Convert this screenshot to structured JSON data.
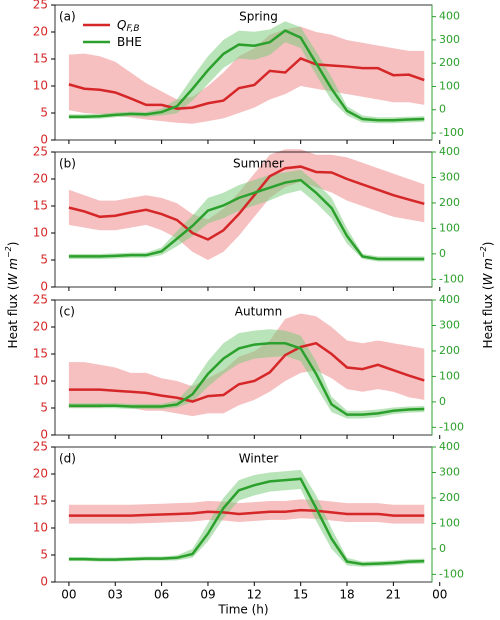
{
  "figure": {
    "ylabel_parts": [
      "Heat flux (",
      "W m",
      "−2",
      ")"
    ],
    "y2label_parts": [
      "Heat flux (",
      "W m",
      "−2",
      ")"
    ],
    "xlabel": "Time (h)",
    "x": [
      0,
      1,
      2,
      3,
      4,
      5,
      6,
      7,
      8,
      9,
      10,
      11,
      12,
      13,
      14,
      15,
      16,
      17,
      18,
      19,
      20,
      21,
      22,
      23
    ],
    "xlim": [
      -0.9,
      23.5
    ],
    "xticks": [
      {
        "value": 0,
        "label": "00"
      },
      {
        "value": 3,
        "label": "03"
      },
      {
        "value": 6,
        "label": "06"
      },
      {
        "value": 9,
        "label": "09"
      },
      12,
      15,
      18,
      21,
      {
        "value": 24,
        "label": "00"
      }
    ]
  },
  "chart_data": [
    {
      "type": "line",
      "label": "(a)",
      "title": "Spring",
      "legend": "upper left",
      "ylim": [
        0,
        25
      ],
      "yticks": [
        0,
        5,
        10,
        15,
        20,
        25
      ],
      "y2lim": [
        -130,
        450
      ],
      "y2ticks": [
        -100,
        0,
        100,
        200,
        300,
        400
      ],
      "series": [
        {
          "name": "Q",
          "name_sub": "F,B",
          "color": "#d62728",
          "band_color": "#ef8a8c",
          "values": [
            10.3,
            9.5,
            9.3,
            8.8,
            7.7,
            6.5,
            6.5,
            5.8,
            6.0,
            6.8,
            7.3,
            9.6,
            10.2,
            12.8,
            12.5,
            15.1,
            14.0,
            13.8,
            13.6,
            13.3,
            13.3,
            12.0,
            12.1,
            11.1
          ],
          "lower": [
            5.5,
            5.0,
            4.8,
            4.5,
            4.2,
            3.8,
            3.5,
            3.2,
            3.0,
            3.5,
            4.0,
            5.0,
            6.0,
            7.5,
            8.5,
            10.0,
            9.5,
            9.0,
            8.5,
            8.0,
            7.5,
            7.0,
            7.0,
            6.5
          ],
          "upper": [
            15.8,
            16.0,
            15.5,
            14.5,
            12.5,
            10.5,
            9.0,
            7.5,
            8.0,
            10.0,
            12.5,
            15.5,
            17.0,
            19.5,
            20.5,
            21.0,
            20.0,
            19.5,
            18.5,
            18.0,
            17.5,
            17.0,
            16.5,
            16.5
          ]
        },
        {
          "name": "BHE",
          "color": "#2ca02c",
          "band_color": "#7fcc7f",
          "axis": "y2",
          "values": [
            -30,
            -30,
            -28,
            -22,
            -18,
            -20,
            -10,
            15,
            90,
            170,
            240,
            280,
            275,
            290,
            340,
            310,
            200,
            90,
            -5,
            -40,
            -45,
            -45,
            -42,
            -40
          ],
          "lower": [
            -40,
            -40,
            -38,
            -32,
            -28,
            -30,
            -25,
            -15,
            40,
            110,
            180,
            220,
            215,
            235,
            290,
            265,
            150,
            40,
            -25,
            -55,
            -58,
            -58,
            -55,
            -52
          ],
          "upper": [
            -20,
            -20,
            -18,
            -12,
            -8,
            -10,
            5,
            45,
            140,
            230,
            300,
            340,
            335,
            345,
            380,
            355,
            250,
            140,
            15,
            -25,
            -32,
            -32,
            -30,
            -28
          ]
        }
      ]
    },
    {
      "type": "line",
      "label": "(b)",
      "title": "Summer",
      "ylim": [
        0,
        25
      ],
      "yticks": [
        0,
        5,
        10,
        15,
        20,
        25
      ],
      "y2lim": [
        -130,
        400
      ],
      "y2ticks": [
        -100,
        0,
        100,
        200,
        300,
        400
      ],
      "series": [
        {
          "color": "#d62728",
          "band_color": "#ef8a8c",
          "values": [
            14.7,
            14.0,
            13.0,
            13.2,
            13.8,
            14.3,
            13.5,
            12.4,
            10.0,
            8.8,
            10.5,
            13.5,
            17.0,
            20.5,
            22.0,
            22.3,
            21.3,
            21.2,
            20.0,
            19.0,
            18.0,
            17.0,
            16.2,
            15.4
          ],
          "lower": [
            11.5,
            11.0,
            10.5,
            10.5,
            11.0,
            11.5,
            10.5,
            9.0,
            6.5,
            5.0,
            6.5,
            9.5,
            13.0,
            16.5,
            18.5,
            19.5,
            18.5,
            17.5,
            16.0,
            15.0,
            14.0,
            13.0,
            12.5,
            12.0
          ],
          "upper": [
            18.0,
            17.0,
            16.0,
            16.0,
            16.5,
            17.0,
            16.5,
            15.5,
            13.5,
            12.5,
            14.5,
            17.5,
            21.0,
            24.5,
            25.5,
            25.5,
            24.5,
            24.5,
            24.0,
            23.0,
            22.0,
            21.0,
            20.0,
            19.0
          ]
        },
        {
          "color": "#2ca02c",
          "band_color": "#7fcc7f",
          "axis": "y2",
          "values": [
            -10,
            -10,
            -10,
            -8,
            -5,
            -5,
            10,
            60,
            110,
            170,
            190,
            220,
            240,
            260,
            280,
            290,
            240,
            180,
            70,
            -10,
            -20,
            -20,
            -20,
            -20
          ],
          "lower": [
            -20,
            -20,
            -20,
            -18,
            -15,
            -15,
            -5,
            30,
            70,
            120,
            140,
            170,
            190,
            210,
            235,
            250,
            200,
            140,
            40,
            -20,
            -30,
            -30,
            -30,
            -30
          ],
          "upper": [
            0,
            0,
            0,
            2,
            5,
            5,
            25,
            90,
            150,
            220,
            240,
            270,
            290,
            310,
            320,
            330,
            280,
            220,
            100,
            0,
            -10,
            -10,
            -10,
            -10
          ]
        }
      ]
    },
    {
      "type": "line",
      "label": "(c)",
      "title": "Autumn",
      "ylim": [
        0,
        25
      ],
      "yticks": [
        0,
        5,
        10,
        15,
        20,
        25
      ],
      "y2lim": [
        -130,
        400
      ],
      "y2ticks": [
        -100,
        0,
        100,
        200,
        300,
        400
      ],
      "series": [
        {
          "color": "#d62728",
          "band_color": "#ef8a8c",
          "values": [
            8.4,
            8.4,
            8.4,
            8.2,
            8.0,
            7.8,
            7.3,
            6.9,
            6.2,
            7.2,
            7.4,
            9.4,
            10.0,
            11.6,
            14.8,
            16.3,
            17.0,
            15.0,
            12.5,
            12.2,
            13.0,
            12.0,
            11.0,
            10.1
          ],
          "lower": [
            5.0,
            5.0,
            5.0,
            5.5,
            5.0,
            4.5,
            4.5,
            4.0,
            3.5,
            4.0,
            4.0,
            5.5,
            6.5,
            8.0,
            10.0,
            11.5,
            12.0,
            10.5,
            8.5,
            8.0,
            8.5,
            8.0,
            7.0,
            6.5
          ],
          "upper": [
            13.5,
            13.5,
            13.0,
            12.5,
            11.5,
            11.5,
            10.5,
            10.0,
            9.0,
            10.5,
            12.0,
            14.5,
            15.5,
            17.5,
            21.5,
            22.5,
            22.0,
            20.0,
            17.5,
            17.0,
            17.5,
            17.0,
            16.5,
            16.0
          ]
        },
        {
          "color": "#2ca02c",
          "band_color": "#7fcc7f",
          "axis": "y2",
          "values": [
            -15,
            -15,
            -15,
            -15,
            -18,
            -18,
            -18,
            -10,
            30,
            110,
            170,
            210,
            225,
            230,
            230,
            210,
            110,
            -10,
            -50,
            -50,
            -45,
            -35,
            -30,
            -28
          ],
          "lower": [
            -25,
            -25,
            -25,
            -25,
            -28,
            -28,
            -28,
            -22,
            0,
            60,
            110,
            150,
            170,
            175,
            180,
            160,
            60,
            -40,
            -65,
            -65,
            -60,
            -48,
            -42,
            -40
          ],
          "upper": [
            -5,
            -5,
            -5,
            -5,
            -8,
            -8,
            -8,
            5,
            70,
            160,
            230,
            270,
            280,
            285,
            280,
            260,
            160,
            20,
            -35,
            -35,
            -30,
            -22,
            -18,
            -16
          ]
        }
      ]
    },
    {
      "type": "line",
      "label": "(d)",
      "title": "Winter",
      "ylim": [
        0,
        25
      ],
      "yticks": [
        0,
        5,
        10,
        15,
        20,
        25
      ],
      "y2lim": [
        -130,
        400
      ],
      "y2ticks": [
        -100,
        0,
        100,
        200,
        300,
        400
      ],
      "series": [
        {
          "color": "#d62728",
          "band_color": "#ef8a8c",
          "values": [
            12.3,
            12.3,
            12.3,
            12.3,
            12.3,
            12.4,
            12.5,
            12.6,
            12.7,
            13.0,
            12.9,
            12.6,
            12.8,
            13.0,
            13.0,
            13.3,
            13.2,
            12.9,
            12.6,
            12.6,
            12.6,
            12.3,
            12.3,
            12.3
          ],
          "lower": [
            10.8,
            10.8,
            10.8,
            10.8,
            10.8,
            10.9,
            11.0,
            11.1,
            11.2,
            11.5,
            11.4,
            11.1,
            11.3,
            11.5,
            11.5,
            11.8,
            11.7,
            11.4,
            11.1,
            11.1,
            11.1,
            10.8,
            10.8,
            10.8
          ],
          "upper": [
            14.3,
            14.3,
            14.3,
            14.3,
            14.3,
            14.4,
            14.5,
            14.6,
            14.7,
            15.0,
            14.9,
            14.6,
            14.8,
            15.0,
            15.0,
            15.3,
            15.2,
            14.9,
            14.6,
            14.6,
            14.6,
            14.3,
            14.3,
            14.3
          ]
        },
        {
          "color": "#2ca02c",
          "band_color": "#7fcc7f",
          "axis": "y2",
          "values": [
            -40,
            -40,
            -42,
            -42,
            -40,
            -38,
            -38,
            -35,
            -20,
            60,
            160,
            230,
            250,
            265,
            270,
            275,
            160,
            40,
            -50,
            -60,
            -58,
            -55,
            -50,
            -48
          ],
          "lower": [
            -48,
            -48,
            -50,
            -50,
            -48,
            -46,
            -46,
            -45,
            -35,
            30,
            120,
            190,
            210,
            225,
            230,
            235,
            110,
            0,
            -65,
            -70,
            -68,
            -65,
            -60,
            -58
          ],
          "upper": [
            -32,
            -32,
            -34,
            -34,
            -32,
            -30,
            -30,
            -25,
            0,
            100,
            200,
            270,
            290,
            300,
            305,
            310,
            210,
            80,
            -35,
            -50,
            -48,
            -45,
            -40,
            -38
          ]
        }
      ]
    }
  ]
}
